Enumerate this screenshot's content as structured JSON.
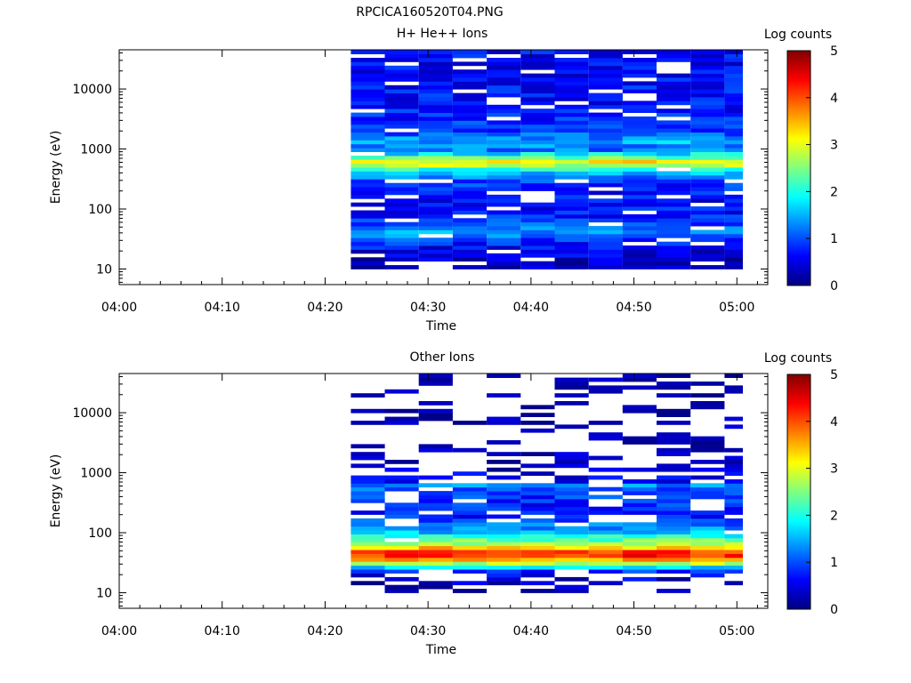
{
  "figure_title": "RPCICA160520T04.PNG",
  "chart_data": [
    {
      "type": "heatmap",
      "title": "H+ He++ Ions",
      "xlabel": "Time",
      "ylabel": "Energy (eV)",
      "x_ticks": [
        "04:00",
        "04:10",
        "04:20",
        "04:30",
        "04:40",
        "04:50",
        "05:00"
      ],
      "x_range": [
        "04:00",
        "05:03"
      ],
      "y_scale": "log",
      "y_ticks": [
        10,
        100,
        1000,
        10000
      ],
      "y_tick_labels": [
        "10",
        "100",
        "1000",
        "10000"
      ],
      "y_range": [
        5.5,
        45000
      ],
      "data_start": "04:22.5",
      "sweep_minutes": 3.3,
      "sweeps": 12,
      "colorbar": {
        "label": "Log counts",
        "range": [
          0,
          5
        ],
        "ticks": [
          "0",
          "1",
          "2",
          "3",
          "4",
          "5"
        ]
      },
      "profile": [
        {
          "e": 10,
          "v": 0.2
        },
        {
          "e": 20,
          "v": 0.5
        },
        {
          "e": 30,
          "v": 0.9
        },
        {
          "e": 40,
          "v": 1.4
        },
        {
          "e": 50,
          "v": 1.1
        },
        {
          "e": 80,
          "v": 0.7
        },
        {
          "e": 150,
          "v": 0.6
        },
        {
          "e": 300,
          "v": 0.9
        },
        {
          "e": 450,
          "v": 2.0
        },
        {
          "e": 600,
          "v": 3.3
        },
        {
          "e": 750,
          "v": 2.2
        },
        {
          "e": 1000,
          "v": 1.1
        },
        {
          "e": 1300,
          "v": 1.5
        },
        {
          "e": 2000,
          "v": 0.9
        },
        {
          "e": 5000,
          "v": 0.7
        },
        {
          "e": 40000,
          "v": 0.6
        }
      ]
    },
    {
      "type": "heatmap",
      "title": "Other Ions",
      "xlabel": "Time",
      "ylabel": "Energy (eV)",
      "x_ticks": [
        "04:00",
        "04:10",
        "04:20",
        "04:30",
        "04:40",
        "04:50",
        "05:00"
      ],
      "x_range": [
        "04:00",
        "05:03"
      ],
      "y_scale": "log",
      "y_ticks": [
        10,
        100,
        1000,
        10000
      ],
      "y_tick_labels": [
        "10",
        "100",
        "1000",
        "10000"
      ],
      "y_range": [
        5.5,
        45000
      ],
      "data_start": "04:22.5",
      "sweep_minutes": 3.3,
      "sweeps": 12,
      "colorbar": {
        "label": "Log counts",
        "range": [
          0,
          5
        ],
        "ticks": [
          "0",
          "1",
          "2",
          "3",
          "4",
          "5"
        ]
      },
      "profile": [
        {
          "e": 10,
          "v": 0.2
        },
        {
          "e": 20,
          "v": 0.5
        },
        {
          "e": 25,
          "v": 1.2
        },
        {
          "e": 30,
          "v": 2.6
        },
        {
          "e": 40,
          "v": 4.2
        },
        {
          "e": 50,
          "v": 4.0
        },
        {
          "e": 60,
          "v": 3.0
        },
        {
          "e": 80,
          "v": 2.2
        },
        {
          "e": 100,
          "v": 1.6
        },
        {
          "e": 200,
          "v": 0.7
        },
        {
          "e": 500,
          "v": 0.9
        },
        {
          "e": 600,
          "v": 1.5
        },
        {
          "e": 700,
          "v": 0.6
        },
        {
          "e": 1500,
          "v": 0.2
        },
        {
          "e": 40000,
          "v": 0.1
        }
      ]
    }
  ]
}
